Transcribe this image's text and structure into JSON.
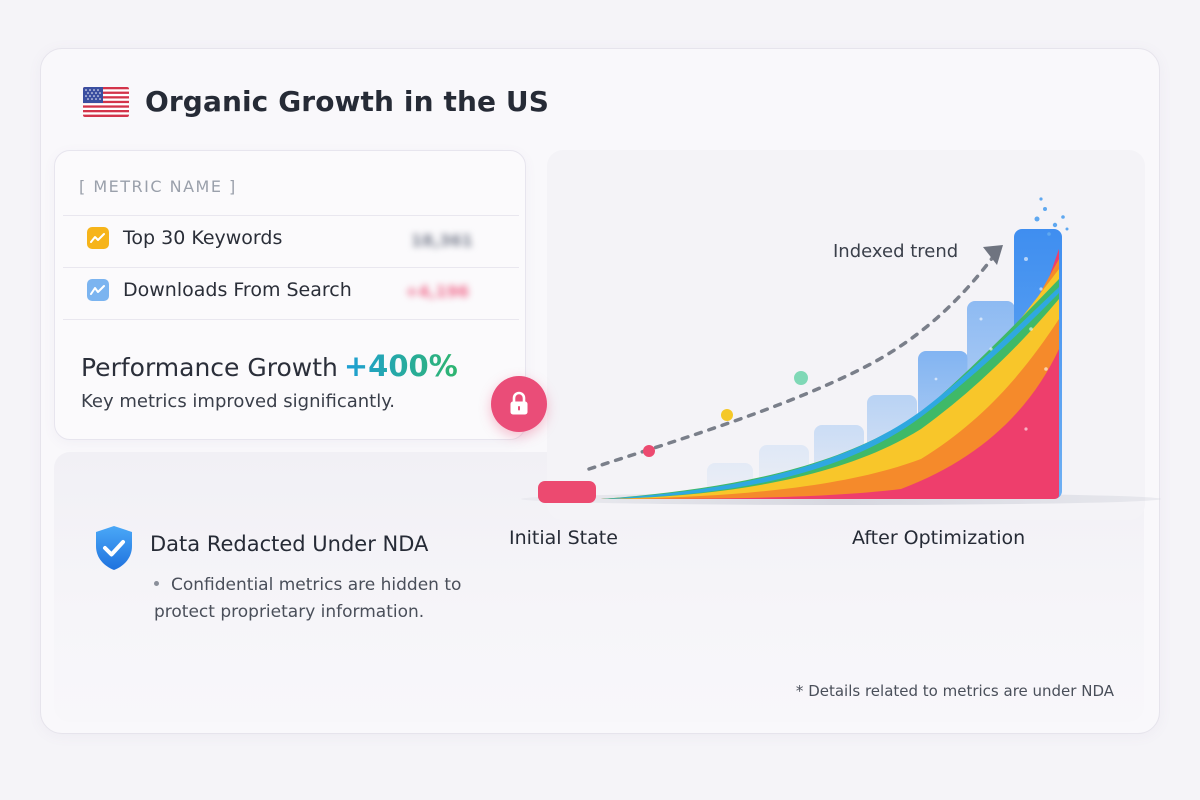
{
  "header": {
    "title": "Organic Growth in the US",
    "flag_icon": "us-flag-icon"
  },
  "metrics": {
    "column_header": "[ METRIC NAME ]",
    "rows": [
      {
        "label": "Top 30 Keywords",
        "icon": "trend-up-icon",
        "icon_color": "#f6b41a",
        "redacted_value": "18,361",
        "value_color": "#7b8090"
      },
      {
        "label": "Downloads From Search",
        "icon": "download-trend-icon",
        "icon_color": "#7bb4f0",
        "redacted_value": "+4,196",
        "value_color": "#f06a8c"
      }
    ],
    "performance_label": "Performance Growth",
    "performance_value": "+400%",
    "performance_subtitle": "Key metrics improved significantly."
  },
  "nda": {
    "title": "Data Redacted Under NDA",
    "bullet": "Confidential metrics are hidden to protect proprietary information.",
    "footnote": "* Details related to metrics are under NDA"
  },
  "chart": {
    "trend_label": "Indexed trend",
    "start_label": "Initial State",
    "end_label": "After Optimization"
  },
  "colors": {
    "accent_blue": "#1e9fd6",
    "accent_green": "#2fb56f",
    "lock_pink": "#ea4d78",
    "shield_blue": "#2f8ff0"
  }
}
